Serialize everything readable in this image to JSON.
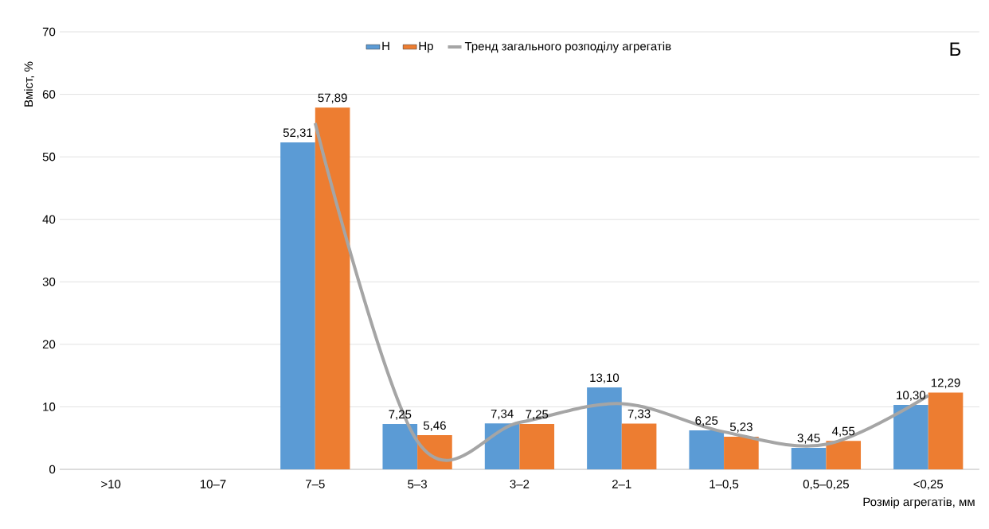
{
  "chart_data": {
    "type": "bar",
    "xlabel": "Розмір агрегатів, мм",
    "ylabel": "Вміст, %",
    "annotations": [
      "Б"
    ],
    "categories": [
      ">10",
      "10–7",
      "7–5",
      "5–3",
      "3–2",
      "2–1",
      "1–0,5",
      "0,5–0,25",
      "<0,25"
    ],
    "series": [
      {
        "name": "Н",
        "color": "#5b9bd5",
        "values": [
          null,
          null,
          52.31,
          7.25,
          7.34,
          13.1,
          6.25,
          3.45,
          10.3
        ],
        "value_labels": [
          null,
          null,
          "52,31",
          "7,25",
          "7,34",
          "13,10",
          "6,25",
          "3,45",
          "10,30"
        ]
      },
      {
        "name": "Нр",
        "color": "#ed7d31",
        "values": [
          null,
          null,
          57.89,
          5.46,
          7.25,
          7.33,
          5.23,
          4.55,
          12.29
        ],
        "value_labels": [
          null,
          null,
          "57,89",
          "5,46",
          "7,25",
          "7,33",
          "5,23",
          "4,55",
          "12,29"
        ]
      },
      {
        "name": "Тренд загального розподілу агрегатів",
        "type": "line",
        "color": "#a5a5a5",
        "values": [
          null,
          null,
          55.4,
          4.5,
          7.5,
          10.5,
          6.0,
          4.0,
          11.8
        ]
      }
    ],
    "ylim": [
      0,
      70
    ],
    "yticks": [
      0,
      10,
      20,
      30,
      40,
      50,
      60,
      70
    ],
    "grid": "y",
    "legend": "top",
    "marker": "none"
  }
}
